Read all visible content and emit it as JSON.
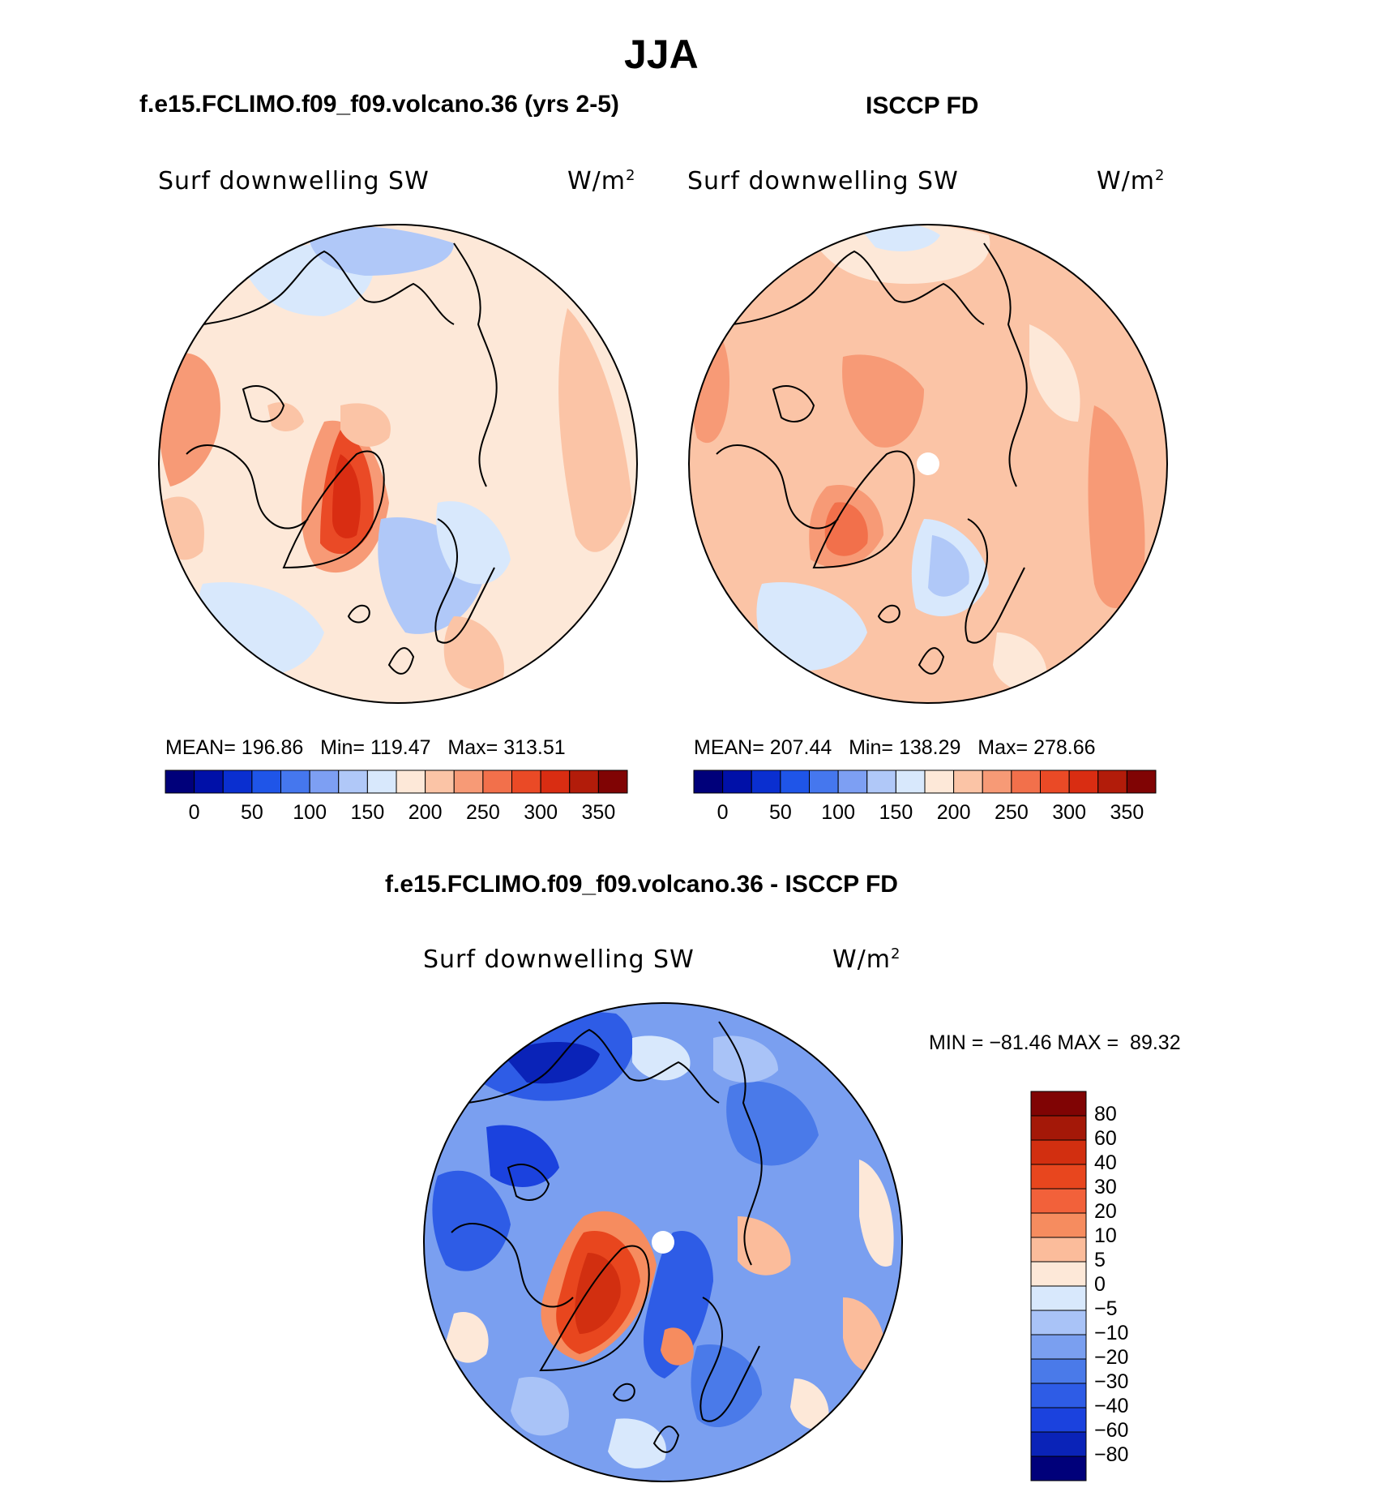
{
  "title": "JJA",
  "left_panel": {
    "title": "f.e15.FCLIMO.f09_f09.volcano.36 (yrs 2-5)",
    "variable": "Surf downwelling SW",
    "units": "W/m",
    "units_sup": "2",
    "stats": {
      "mean_label": "MEAN=",
      "mean": "196.86",
      "min_label": "Min=",
      "min": "119.47",
      "max_label": "Max=",
      "max": "313.51"
    }
  },
  "right_panel": {
    "title": "ISCCP FD",
    "variable": "Surf downwelling SW",
    "units": "W/m",
    "units_sup": "2",
    "stats": {
      "mean_label": "MEAN=",
      "mean": "207.44",
      "min_label": "Min=",
      "min": "138.29",
      "max_label": "Max=",
      "max": "278.66"
    }
  },
  "diff_panel": {
    "title": "f.e15.FCLIMO.f09_f09.volcano.36 - ISCCP FD",
    "variable": "Surf downwelling SW",
    "units": "W/m",
    "units_sup": "2",
    "minmax": "MIN = −81.46 MAX =  89.32"
  },
  "abs_colorbar": {
    "colors": [
      "#00007a",
      "#0010a8",
      "#0a2fd0",
      "#1f55e8",
      "#4577ee",
      "#7d9ff3",
      "#b0c8f8",
      "#d8e8fc",
      "#fde8d8",
      "#fbc4a6",
      "#f79a76",
      "#f2704b",
      "#ea4a26",
      "#d92d12",
      "#b21c0a",
      "#800404"
    ],
    "ticks": [
      "0",
      "50",
      "100",
      "150",
      "200",
      "250",
      "300",
      "350"
    ]
  },
  "diff_colorbar": {
    "colors": [
      "#00007a",
      "#0a23b8",
      "#1b42de",
      "#2e5ce6",
      "#4a7ae9",
      "#7a9ff0",
      "#a9c3f7",
      "#d8e8fc",
      "#fde8d8",
      "#fbbc9b",
      "#f68c5f",
      "#f2613a",
      "#e8461e",
      "#d22f10",
      "#a41808",
      "#800404"
    ],
    "labels": [
      "80",
      "60",
      "40",
      "30",
      "20",
      "10",
      "5",
      "0",
      "−5",
      "−10",
      "−20",
      "−30",
      "−40",
      "−60",
      "−80"
    ]
  }
}
